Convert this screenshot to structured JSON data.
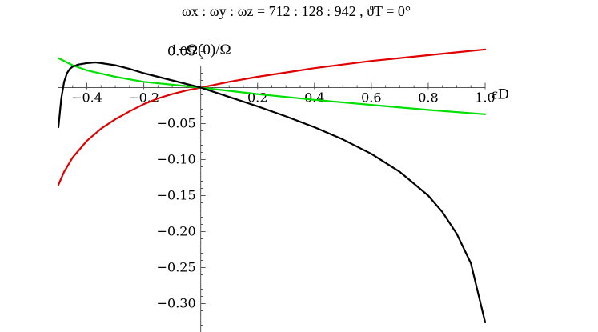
{
  "chart_data": {
    "type": "line",
    "title": "ωx : ωy : ωz   =   712 : 128 : 942   ,   ϑT = 0°",
    "xlabel": "εD",
    "ylabel": "1−Ω(0)/Ω",
    "xlim": [
      -0.5,
      1.0
    ],
    "ylim": [
      -0.335,
      0.065
    ],
    "grid": false,
    "x_ticks": [
      -0.4,
      -0.2,
      0.2,
      0.4,
      0.6,
      0.8,
      1.0
    ],
    "x_tick_labels": [
      "−0.4",
      "−0.2",
      "0.2",
      "0.4",
      "0.6",
      "0.8",
      "1.0"
    ],
    "y_ticks": [
      0.05,
      -0.05,
      -0.1,
      -0.15,
      -0.2,
      -0.25,
      -0.3
    ],
    "y_tick_labels": [
      "0.05",
      "−0.05",
      "−0.10",
      "−0.15",
      "−0.20",
      "−0.25",
      "−0.30"
    ],
    "series": [
      {
        "color": "#e00000",
        "x": [
          -0.5,
          -0.48,
          -0.45,
          -0.4,
          -0.35,
          -0.3,
          -0.25,
          -0.2,
          -0.15,
          -0.1,
          -0.05,
          0.0,
          0.1,
          0.2,
          0.3,
          0.4,
          0.5,
          0.6,
          0.7,
          0.8,
          0.9,
          1.0
        ],
        "y": [
          -0.135,
          -0.117,
          -0.097,
          -0.074,
          -0.057,
          -0.044,
          -0.033,
          -0.023,
          -0.015,
          -0.009,
          -0.004,
          0.0,
          0.008,
          0.015,
          0.021,
          0.027,
          0.032,
          0.037,
          0.041,
          0.045,
          0.049,
          0.053
        ]
      },
      {
        "color": "#00e000",
        "x": [
          -0.5,
          -0.45,
          -0.4,
          -0.3,
          -0.2,
          -0.1,
          0.0,
          0.2,
          0.4,
          0.6,
          0.8,
          1.0
        ],
        "y": [
          0.041,
          0.031,
          0.024,
          0.015,
          0.008,
          0.004,
          0.0,
          -0.009,
          -0.017,
          -0.024,
          -0.031,
          -0.037
        ]
      },
      {
        "color": "#000000",
        "x": [
          -0.5,
          -0.49,
          -0.48,
          -0.47,
          -0.46,
          -0.45,
          -0.43,
          -0.4,
          -0.37,
          -0.35,
          -0.3,
          -0.25,
          -0.2,
          -0.1,
          0.0,
          0.1,
          0.2,
          0.3,
          0.4,
          0.5,
          0.6,
          0.7,
          0.8,
          0.85,
          0.9,
          0.95,
          1.0
        ],
        "y": [
          -0.055,
          -0.015,
          0.008,
          0.02,
          0.026,
          0.029,
          0.032,
          0.034,
          0.035,
          0.034,
          0.031,
          0.026,
          0.02,
          0.01,
          0.0,
          -0.013,
          -0.026,
          -0.04,
          -0.055,
          -0.072,
          -0.092,
          -0.117,
          -0.15,
          -0.173,
          -0.203,
          -0.244,
          -0.326
        ]
      }
    ]
  }
}
